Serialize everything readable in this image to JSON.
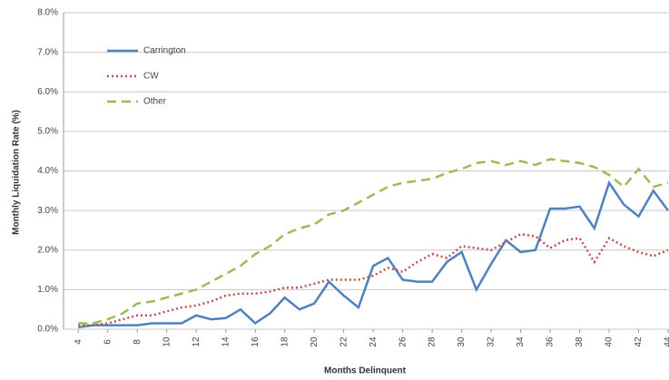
{
  "chart_data": {
    "type": "line",
    "x_label": "Months Delinquent",
    "y_label": "Monthly Liquidation Rate (%)",
    "x": [
      4,
      5,
      6,
      7,
      8,
      9,
      10,
      11,
      12,
      13,
      14,
      15,
      16,
      17,
      18,
      19,
      20,
      21,
      22,
      23,
      24,
      25,
      26,
      27,
      28,
      29,
      30,
      31,
      32,
      33,
      34,
      35,
      36,
      37,
      38,
      39,
      40,
      41,
      42,
      43,
      44
    ],
    "series": [
      {
        "name": "Carrington",
        "color": "#4f81bd",
        "style": "solid",
        "values": [
          0.05,
          0.1,
          0.1,
          0.1,
          0.1,
          0.15,
          0.15,
          0.15,
          0.35,
          0.25,
          0.28,
          0.5,
          0.15,
          0.4,
          0.8,
          0.5,
          0.65,
          1.2,
          0.85,
          0.55,
          1.6,
          1.8,
          1.25,
          1.2,
          1.2,
          1.7,
          1.95,
          1.0,
          1.65,
          2.25,
          1.95,
          2.0,
          3.05,
          3.05,
          3.1,
          2.55,
          3.7,
          3.15,
          2.85,
          3.5,
          3.0
        ]
      },
      {
        "name": "CW",
        "color": "#c0504d",
        "style": "dotted",
        "values": [
          0.1,
          0.1,
          0.15,
          0.25,
          0.35,
          0.35,
          0.45,
          0.55,
          0.6,
          0.7,
          0.85,
          0.9,
          0.9,
          0.95,
          1.05,
          1.05,
          1.15,
          1.25,
          1.25,
          1.25,
          1.35,
          1.55,
          1.45,
          1.7,
          1.9,
          1.8,
          2.1,
          2.05,
          2.0,
          2.2,
          2.4,
          2.35,
          2.05,
          2.25,
          2.3,
          1.7,
          2.3,
          2.1,
          1.95,
          1.85,
          2.0
        ]
      },
      {
        "name": "Other",
        "color": "#9bbb59",
        "style": "dashed",
        "values": [
          0.15,
          0.15,
          0.25,
          0.4,
          0.65,
          0.7,
          0.8,
          0.9,
          1.0,
          1.2,
          1.4,
          1.6,
          1.9,
          2.1,
          2.4,
          2.55,
          2.65,
          2.9,
          3.0,
          3.2,
          3.4,
          3.6,
          3.7,
          3.75,
          3.8,
          3.95,
          4.05,
          4.2,
          4.25,
          4.15,
          4.25,
          4.15,
          4.3,
          4.25,
          4.2,
          4.1,
          3.9,
          3.6,
          4.05,
          3.6,
          3.7
        ]
      }
    ],
    "xlim": [
      3,
      44
    ],
    "xticks": [
      4,
      6,
      8,
      10,
      12,
      14,
      16,
      18,
      20,
      22,
      24,
      26,
      28,
      30,
      32,
      34,
      36,
      38,
      40,
      42,
      44
    ],
    "ylim": [
      0,
      8
    ],
    "yticks": [
      {
        "value": 0,
        "label": "0.0%"
      },
      {
        "value": 1,
        "label": "1.0%"
      },
      {
        "value": 2,
        "label": "2.0%"
      },
      {
        "value": 3,
        "label": "3.0%"
      },
      {
        "value": 4,
        "label": "4.0%"
      },
      {
        "value": 5,
        "label": "5.0%"
      },
      {
        "value": 6,
        "label": "6.0%"
      },
      {
        "value": 7,
        "label": "7.0%"
      },
      {
        "value": 8,
        "label": "8.0%"
      }
    ],
    "grid": true,
    "legend": "top-left"
  }
}
